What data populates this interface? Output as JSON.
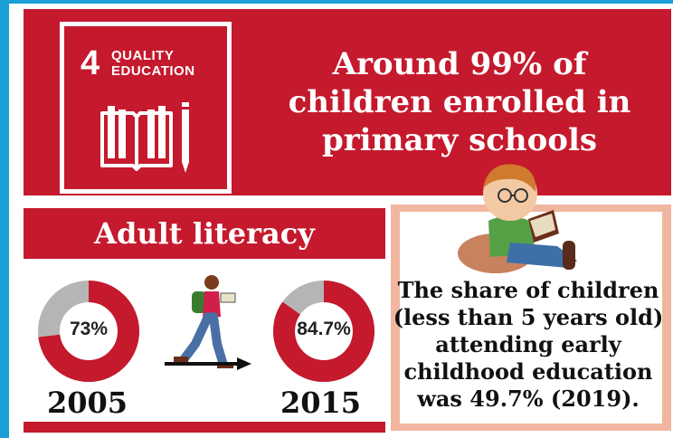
{
  "sdg": {
    "number": "4",
    "label_line1": "QUALITY",
    "label_line2": "EDUCATION",
    "icon": "book-pencil-icon"
  },
  "headline": {
    "line1": "Around 99% of",
    "line2": "children enrolled in",
    "line3": "primary schools"
  },
  "literacy": {
    "title": "Adult literacy",
    "items": [
      {
        "year": "2005",
        "value_label": "73%",
        "value": 73
      },
      {
        "year": "2015",
        "value_label": "84.7%",
        "value": 84.7
      }
    ],
    "icon": "walking-reader-icon"
  },
  "early_childhood": {
    "icon": "child-reading-icon",
    "line1": "The share of children",
    "line2": "(less than 5 years old)",
    "line3": "attending early",
    "line4": "childhood education",
    "line5": "was 49.7% (2019)."
  },
  "colors": {
    "brand_red": "#c5192d",
    "frame_blue": "#1a9fd6",
    "donut_gray": "#b5b5b5",
    "peach": "#f0b6a0"
  }
}
